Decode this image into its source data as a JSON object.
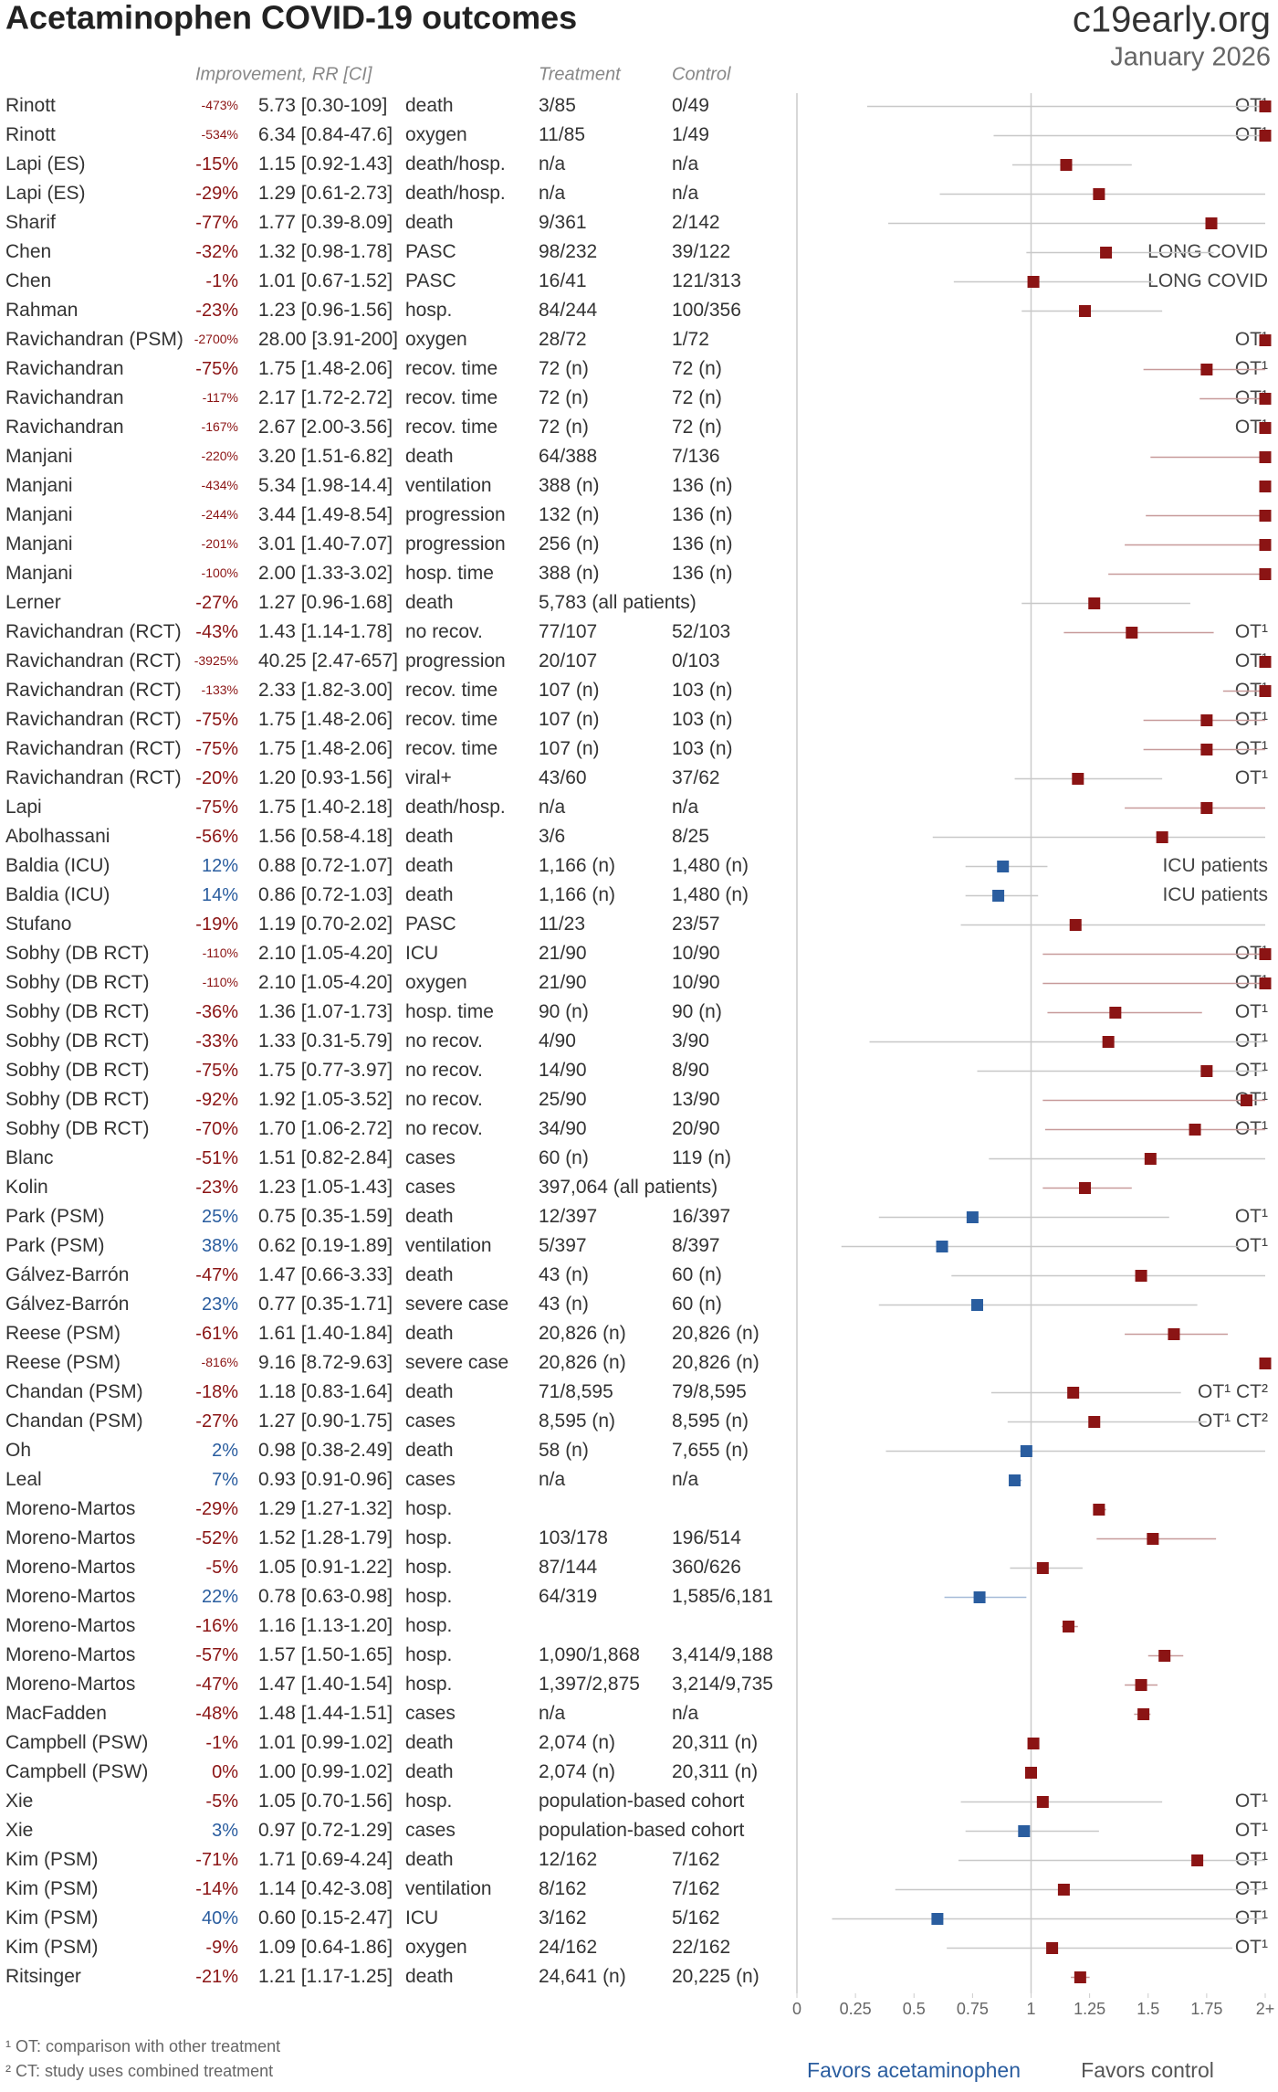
{
  "chart_data": {
    "type": "forest",
    "title": "Acetaminophen COVID-19 outcomes",
    "logo": "c19early.org",
    "date": "January 2026",
    "column_headers": {
      "effect": "Improvement, RR [CI]",
      "treatment": "Treatment",
      "control": "Control"
    },
    "xlim": [
      0,
      2
    ],
    "xticks": [
      0,
      0.25,
      0.5,
      0.75,
      1,
      1.25,
      1.5,
      1.75,
      {
        "value": 2,
        "label": "2+"
      }
    ],
    "reference_line": 1,
    "harm_color": "#8b1414",
    "benefit_color": "#2a5d9f",
    "x_labels": {
      "left": "Favors acetaminophen",
      "right": "Favors control"
    },
    "footnotes": [
      "¹ OT: comparison with other treatment",
      "² CT: study uses combined treatment"
    ],
    "rows": [
      {
        "study": "Rinott",
        "improvement": "-473%",
        "rr_label": "5.73 [0.30-109]",
        "rr": 5.73,
        "lo": 0.3,
        "hi": 109,
        "outcome": "death",
        "treatment": "3/85",
        "control": "0/49",
        "note": "OT¹"
      },
      {
        "study": "Rinott",
        "improvement": "-534%",
        "rr_label": "6.34 [0.84-47.6]",
        "rr": 6.34,
        "lo": 0.84,
        "hi": 47.6,
        "outcome": "oxygen",
        "treatment": "11/85",
        "control": "1/49",
        "note": "OT¹"
      },
      {
        "study": "Lapi (ES)",
        "improvement": "-15%",
        "rr_label": "1.15 [0.92-1.43]",
        "rr": 1.15,
        "lo": 0.92,
        "hi": 1.43,
        "outcome": "death/hosp.",
        "treatment": "n/a",
        "control": "n/a"
      },
      {
        "study": "Lapi (ES)",
        "improvement": "-29%",
        "rr_label": "1.29 [0.61-2.73]",
        "rr": 1.29,
        "lo": 0.61,
        "hi": 2.73,
        "outcome": "death/hosp.",
        "treatment": "n/a",
        "control": "n/a"
      },
      {
        "study": "Sharif",
        "improvement": "-77%",
        "rr_label": "1.77 [0.39-8.09]",
        "rr": 1.77,
        "lo": 0.39,
        "hi": 8.09,
        "outcome": "death",
        "treatment": "9/361",
        "control": "2/142"
      },
      {
        "study": "Chen",
        "improvement": "-32%",
        "rr_label": "1.32 [0.98-1.78]",
        "rr": 1.32,
        "lo": 0.98,
        "hi": 1.78,
        "outcome": "PASC",
        "treatment": "98/232",
        "control": "39/122",
        "note": "LONG COVID"
      },
      {
        "study": "Chen",
        "improvement": "-1%",
        "rr_label": "1.01 [0.67-1.52]",
        "rr": 1.01,
        "lo": 0.67,
        "hi": 1.52,
        "outcome": "PASC",
        "treatment": "16/41",
        "control": "121/313",
        "note": "LONG COVID"
      },
      {
        "study": "Rahman",
        "improvement": "-23%",
        "rr_label": "1.23 [0.96-1.56]",
        "rr": 1.23,
        "lo": 0.96,
        "hi": 1.56,
        "outcome": "hosp.",
        "treatment": "84/244",
        "control": "100/356"
      },
      {
        "study": "Ravichandran (PSM)",
        "improvement": "-2700%",
        "rr_label": "28.00 [3.91-200]",
        "rr": 28.0,
        "lo": 3.91,
        "hi": 200,
        "outcome": "oxygen",
        "treatment": "28/72",
        "control": "1/72",
        "note": "OT¹"
      },
      {
        "study": "Ravichandran",
        "improvement": "-75%",
        "rr_label": "1.75 [1.48-2.06]",
        "rr": 1.75,
        "lo": 1.48,
        "hi": 2.06,
        "outcome": "recov. time",
        "treatment": "72 (n)",
        "control": "72 (n)",
        "note": "OT¹"
      },
      {
        "study": "Ravichandran",
        "improvement": "-117%",
        "rr_label": "2.17 [1.72-2.72]",
        "rr": 2.17,
        "lo": 1.72,
        "hi": 2.72,
        "outcome": "recov. time",
        "treatment": "72 (n)",
        "control": "72 (n)",
        "note": "OT¹"
      },
      {
        "study": "Ravichandran",
        "improvement": "-167%",
        "rr_label": "2.67 [2.00-3.56]",
        "rr": 2.67,
        "lo": 2.0,
        "hi": 3.56,
        "outcome": "recov. time",
        "treatment": "72 (n)",
        "control": "72 (n)",
        "note": "OT¹"
      },
      {
        "study": "Manjani",
        "improvement": "-220%",
        "rr_label": "3.20 [1.51-6.82]",
        "rr": 3.2,
        "lo": 1.51,
        "hi": 6.82,
        "outcome": "death",
        "treatment": "64/388",
        "control": "7/136"
      },
      {
        "study": "Manjani",
        "improvement": "-434%",
        "rr_label": "5.34 [1.98-14.4]",
        "rr": 5.34,
        "lo": 1.98,
        "hi": 14.4,
        "outcome": "ventilation",
        "treatment": "388 (n)",
        "control": "136 (n)"
      },
      {
        "study": "Manjani",
        "improvement": "-244%",
        "rr_label": "3.44 [1.49-8.54]",
        "rr": 3.44,
        "lo": 1.49,
        "hi": 8.54,
        "outcome": "progression",
        "treatment": "132 (n)",
        "control": "136 (n)"
      },
      {
        "study": "Manjani",
        "improvement": "-201%",
        "rr_label": "3.01 [1.40-7.07]",
        "rr": 3.01,
        "lo": 1.4,
        "hi": 7.07,
        "outcome": "progression",
        "treatment": "256 (n)",
        "control": "136 (n)"
      },
      {
        "study": "Manjani",
        "improvement": "-100%",
        "rr_label": "2.00 [1.33-3.02]",
        "rr": 2.0,
        "lo": 1.33,
        "hi": 3.02,
        "outcome": "hosp. time",
        "treatment": "388 (n)",
        "control": "136 (n)"
      },
      {
        "study": "Lerner",
        "improvement": "-27%",
        "rr_label": "1.27 [0.96-1.68]",
        "rr": 1.27,
        "lo": 0.96,
        "hi": 1.68,
        "outcome": "death",
        "treatment": "5,783 (all patients)"
      },
      {
        "study": "Ravichandran (RCT)",
        "improvement": "-43%",
        "rr_label": "1.43 [1.14-1.78]",
        "rr": 1.43,
        "lo": 1.14,
        "hi": 1.78,
        "outcome": "no recov.",
        "treatment": "77/107",
        "control": "52/103",
        "note": "OT¹"
      },
      {
        "study": "Ravichandran (RCT)",
        "improvement": "-3925%",
        "rr_label": "40.25 [2.47-657]",
        "rr": 40.25,
        "lo": 2.47,
        "hi": 657,
        "outcome": "progression",
        "treatment": "20/107",
        "control": "0/103",
        "note": "OT¹"
      },
      {
        "study": "Ravichandran (RCT)",
        "improvement": "-133%",
        "rr_label": "2.33 [1.82-3.00]",
        "rr": 2.33,
        "lo": 1.82,
        "hi": 3.0,
        "outcome": "recov. time",
        "treatment": "107 (n)",
        "control": "103 (n)",
        "note": "OT¹"
      },
      {
        "study": "Ravichandran (RCT)",
        "improvement": "-75%",
        "rr_label": "1.75 [1.48-2.06]",
        "rr": 1.75,
        "lo": 1.48,
        "hi": 2.06,
        "outcome": "recov. time",
        "treatment": "107 (n)",
        "control": "103 (n)",
        "note": "OT¹"
      },
      {
        "study": "Ravichandran (RCT)",
        "improvement": "-75%",
        "rr_label": "1.75 [1.48-2.06]",
        "rr": 1.75,
        "lo": 1.48,
        "hi": 2.06,
        "outcome": "recov. time",
        "treatment": "107 (n)",
        "control": "103 (n)",
        "note": "OT¹"
      },
      {
        "study": "Ravichandran (RCT)",
        "improvement": "-20%",
        "rr_label": "1.20 [0.93-1.56]",
        "rr": 1.2,
        "lo": 0.93,
        "hi": 1.56,
        "outcome": "viral+",
        "treatment": "43/60",
        "control": "37/62",
        "note": "OT¹"
      },
      {
        "study": "Lapi",
        "improvement": "-75%",
        "rr_label": "1.75 [1.40-2.18]",
        "rr": 1.75,
        "lo": 1.4,
        "hi": 2.18,
        "outcome": "death/hosp.",
        "treatment": "n/a",
        "control": "n/a"
      },
      {
        "study": "Abolhassani",
        "improvement": "-56%",
        "rr_label": "1.56 [0.58-4.18]",
        "rr": 1.56,
        "lo": 0.58,
        "hi": 4.18,
        "outcome": "death",
        "treatment": "3/6",
        "control": "8/25"
      },
      {
        "study": "Baldia (ICU)",
        "improvement": "12%",
        "rr_label": "0.88 [0.72-1.07]",
        "rr": 0.88,
        "lo": 0.72,
        "hi": 1.07,
        "outcome": "death",
        "treatment": "1,166 (n)",
        "control": "1,480 (n)",
        "note": "ICU patients"
      },
      {
        "study": "Baldia (ICU)",
        "improvement": "14%",
        "rr_label": "0.86 [0.72-1.03]",
        "rr": 0.86,
        "lo": 0.72,
        "hi": 1.03,
        "outcome": "death",
        "treatment": "1,166 (n)",
        "control": "1,480 (n)",
        "note": "ICU patients"
      },
      {
        "study": "Stufano",
        "improvement": "-19%",
        "rr_label": "1.19 [0.70-2.02]",
        "rr": 1.19,
        "lo": 0.7,
        "hi": 2.02,
        "outcome": "PASC",
        "treatment": "11/23",
        "control": "23/57"
      },
      {
        "study": "Sobhy (DB RCT)",
        "improvement": "-110%",
        "rr_label": "2.10 [1.05-4.20]",
        "rr": 2.1,
        "lo": 1.05,
        "hi": 4.2,
        "outcome": "ICU",
        "treatment": "21/90",
        "control": "10/90",
        "note": "OT¹"
      },
      {
        "study": "Sobhy (DB RCT)",
        "improvement": "-110%",
        "rr_label": "2.10 [1.05-4.20]",
        "rr": 2.1,
        "lo": 1.05,
        "hi": 4.2,
        "outcome": "oxygen",
        "treatment": "21/90",
        "control": "10/90",
        "note": "OT¹"
      },
      {
        "study": "Sobhy (DB RCT)",
        "improvement": "-36%",
        "rr_label": "1.36 [1.07-1.73]",
        "rr": 1.36,
        "lo": 1.07,
        "hi": 1.73,
        "outcome": "hosp. time",
        "treatment": "90 (n)",
        "control": "90 (n)",
        "note": "OT¹"
      },
      {
        "study": "Sobhy (DB RCT)",
        "improvement": "-33%",
        "rr_label": "1.33 [0.31-5.79]",
        "rr": 1.33,
        "lo": 0.31,
        "hi": 5.79,
        "outcome": "no recov.",
        "treatment": "4/90",
        "control": "3/90",
        "note": "OT¹"
      },
      {
        "study": "Sobhy (DB RCT)",
        "improvement": "-75%",
        "rr_label": "1.75 [0.77-3.97]",
        "rr": 1.75,
        "lo": 0.77,
        "hi": 3.97,
        "outcome": "no recov.",
        "treatment": "14/90",
        "control": "8/90",
        "note": "OT¹"
      },
      {
        "study": "Sobhy (DB RCT)",
        "improvement": "-92%",
        "rr_label": "1.92 [1.05-3.52]",
        "rr": 1.92,
        "lo": 1.05,
        "hi": 3.52,
        "outcome": "no recov.",
        "treatment": "25/90",
        "control": "13/90",
        "note": "OT¹"
      },
      {
        "study": "Sobhy (DB RCT)",
        "improvement": "-70%",
        "rr_label": "1.70 [1.06-2.72]",
        "rr": 1.7,
        "lo": 1.06,
        "hi": 2.72,
        "outcome": "no recov.",
        "treatment": "34/90",
        "control": "20/90",
        "note": "OT¹"
      },
      {
        "study": "Blanc",
        "improvement": "-51%",
        "rr_label": "1.51 [0.82-2.84]",
        "rr": 1.51,
        "lo": 0.82,
        "hi": 2.84,
        "outcome": "cases",
        "treatment": "60 (n)",
        "control": "119 (n)"
      },
      {
        "study": "Kolin",
        "improvement": "-23%",
        "rr_label": "1.23 [1.05-1.43]",
        "rr": 1.23,
        "lo": 1.05,
        "hi": 1.43,
        "outcome": "cases",
        "treatment": "397,064 (all patients)"
      },
      {
        "study": "Park (PSM)",
        "improvement": "25%",
        "rr_label": "0.75 [0.35-1.59]",
        "rr": 0.75,
        "lo": 0.35,
        "hi": 1.59,
        "outcome": "death",
        "treatment": "12/397",
        "control": "16/397",
        "note": "OT¹"
      },
      {
        "study": "Park (PSM)",
        "improvement": "38%",
        "rr_label": "0.62 [0.19-1.89]",
        "rr": 0.62,
        "lo": 0.19,
        "hi": 1.89,
        "outcome": "ventilation",
        "treatment": "5/397",
        "control": "8/397",
        "note": "OT¹"
      },
      {
        "study": "Gálvez-Barrón",
        "improvement": "-47%",
        "rr_label": "1.47 [0.66-3.33]",
        "rr": 1.47,
        "lo": 0.66,
        "hi": 3.33,
        "outcome": "death",
        "treatment": "43 (n)",
        "control": "60 (n)"
      },
      {
        "study": "Gálvez-Barrón",
        "improvement": "23%",
        "rr_label": "0.77 [0.35-1.71]",
        "rr": 0.77,
        "lo": 0.35,
        "hi": 1.71,
        "outcome": "severe case",
        "treatment": "43 (n)",
        "control": "60 (n)"
      },
      {
        "study": "Reese (PSM)",
        "improvement": "-61%",
        "rr_label": "1.61 [1.40-1.84]",
        "rr": 1.61,
        "lo": 1.4,
        "hi": 1.84,
        "outcome": "death",
        "treatment": "20,826 (n)",
        "control": "20,826 (n)"
      },
      {
        "study": "Reese (PSM)",
        "improvement": "-816%",
        "rr_label": "9.16 [8.72-9.63]",
        "rr": 9.16,
        "lo": 8.72,
        "hi": 9.63,
        "outcome": "severe case",
        "treatment": "20,826 (n)",
        "control": "20,826 (n)"
      },
      {
        "study": "Chandan (PSM)",
        "improvement": "-18%",
        "rr_label": "1.18 [0.83-1.64]",
        "rr": 1.18,
        "lo": 0.83,
        "hi": 1.64,
        "outcome": "death",
        "treatment": "71/8,595",
        "control": "79/8,595",
        "note": "OT¹ CT²"
      },
      {
        "study": "Chandan (PSM)",
        "improvement": "-27%",
        "rr_label": "1.27 [0.90-1.75]",
        "rr": 1.27,
        "lo": 0.9,
        "hi": 1.75,
        "outcome": "cases",
        "treatment": "8,595 (n)",
        "control": "8,595 (n)",
        "note": "OT¹ CT²"
      },
      {
        "study": "Oh",
        "improvement": "2%",
        "rr_label": "0.98 [0.38-2.49]",
        "rr": 0.98,
        "lo": 0.38,
        "hi": 2.49,
        "outcome": "death",
        "treatment": "58 (n)",
        "control": "7,655 (n)"
      },
      {
        "study": "Leal",
        "improvement": "7%",
        "rr_label": "0.93 [0.91-0.96]",
        "rr": 0.93,
        "lo": 0.91,
        "hi": 0.96,
        "outcome": "cases",
        "treatment": "n/a",
        "control": "n/a"
      },
      {
        "study": "Moreno-Martos",
        "improvement": "-29%",
        "rr_label": "1.29 [1.27-1.32]",
        "rr": 1.29,
        "lo": 1.27,
        "hi": 1.32,
        "outcome": "hosp."
      },
      {
        "study": "Moreno-Martos",
        "improvement": "-52%",
        "rr_label": "1.52 [1.28-1.79]",
        "rr": 1.52,
        "lo": 1.28,
        "hi": 1.79,
        "outcome": "hosp.",
        "treatment": "103/178",
        "control": "196/514"
      },
      {
        "study": "Moreno-Martos",
        "improvement": "-5%",
        "rr_label": "1.05 [0.91-1.22]",
        "rr": 1.05,
        "lo": 0.91,
        "hi": 1.22,
        "outcome": "hosp.",
        "treatment": "87/144",
        "control": "360/626"
      },
      {
        "study": "Moreno-Martos",
        "improvement": "22%",
        "rr_label": "0.78 [0.63-0.98]",
        "rr": 0.78,
        "lo": 0.63,
        "hi": 0.98,
        "outcome": "hosp.",
        "treatment": "64/319",
        "control": "1,585/6,181"
      },
      {
        "study": "Moreno-Martos",
        "improvement": "-16%",
        "rr_label": "1.16 [1.13-1.20]",
        "rr": 1.16,
        "lo": 1.13,
        "hi": 1.2,
        "outcome": "hosp."
      },
      {
        "study": "Moreno-Martos",
        "improvement": "-57%",
        "rr_label": "1.57 [1.50-1.65]",
        "rr": 1.57,
        "lo": 1.5,
        "hi": 1.65,
        "outcome": "hosp.",
        "treatment": "1,090/1,868",
        "control": "3,414/9,188"
      },
      {
        "study": "Moreno-Martos",
        "improvement": "-47%",
        "rr_label": "1.47 [1.40-1.54]",
        "rr": 1.47,
        "lo": 1.4,
        "hi": 1.54,
        "outcome": "hosp.",
        "treatment": "1,397/2,875",
        "control": "3,214/9,735"
      },
      {
        "study": "MacFadden",
        "improvement": "-48%",
        "rr_label": "1.48 [1.44-1.51]",
        "rr": 1.48,
        "lo": 1.44,
        "hi": 1.51,
        "outcome": "cases",
        "treatment": "n/a",
        "control": "n/a"
      },
      {
        "study": "Campbell (PSW)",
        "improvement": "-1%",
        "rr_label": "1.01 [0.99-1.02]",
        "rr": 1.01,
        "lo": 0.99,
        "hi": 1.02,
        "outcome": "death",
        "treatment": "2,074 (n)",
        "control": "20,311 (n)"
      },
      {
        "study": "Campbell (PSW)",
        "improvement": "0%",
        "rr_label": "1.00 [0.99-1.02]",
        "rr": 1.0,
        "lo": 0.99,
        "hi": 1.02,
        "outcome": "death",
        "treatment": "2,074 (n)",
        "control": "20,311 (n)"
      },
      {
        "study": "Xie",
        "improvement": "-5%",
        "rr_label": "1.05 [0.70-1.56]",
        "rr": 1.05,
        "lo": 0.7,
        "hi": 1.56,
        "outcome": "hosp.",
        "treatment": "population-based cohort",
        "note": "OT¹"
      },
      {
        "study": "Xie",
        "improvement": "3%",
        "rr_label": "0.97 [0.72-1.29]",
        "rr": 0.97,
        "lo": 0.72,
        "hi": 1.29,
        "outcome": "cases",
        "treatment": "population-based cohort",
        "note": "OT¹"
      },
      {
        "study": "Kim (PSM)",
        "improvement": "-71%",
        "rr_label": "1.71 [0.69-4.24]",
        "rr": 1.71,
        "lo": 0.69,
        "hi": 4.24,
        "outcome": "death",
        "treatment": "12/162",
        "control": "7/162",
        "note": "OT¹"
      },
      {
        "study": "Kim (PSM)",
        "improvement": "-14%",
        "rr_label": "1.14 [0.42-3.08]",
        "rr": 1.14,
        "lo": 0.42,
        "hi": 3.08,
        "outcome": "ventilation",
        "treatment": "8/162",
        "control": "7/162",
        "note": "OT¹"
      },
      {
        "study": "Kim (PSM)",
        "improvement": "40%",
        "rr_label": "0.60 [0.15-2.47]",
        "rr": 0.6,
        "lo": 0.15,
        "hi": 2.47,
        "outcome": "ICU",
        "treatment": "3/162",
        "control": "5/162",
        "note": "OT¹"
      },
      {
        "study": "Kim (PSM)",
        "improvement": "-9%",
        "rr_label": "1.09 [0.64-1.86]",
        "rr": 1.09,
        "lo": 0.64,
        "hi": 1.86,
        "outcome": "oxygen",
        "treatment": "24/162",
        "control": "22/162",
        "note": "OT¹"
      },
      {
        "study": "Ritsinger",
        "improvement": "-21%",
        "rr_label": "1.21 [1.17-1.25]",
        "rr": 1.21,
        "lo": 1.17,
        "hi": 1.25,
        "outcome": "death",
        "treatment": "24,641 (n)",
        "control": "20,225 (n)"
      }
    ]
  }
}
